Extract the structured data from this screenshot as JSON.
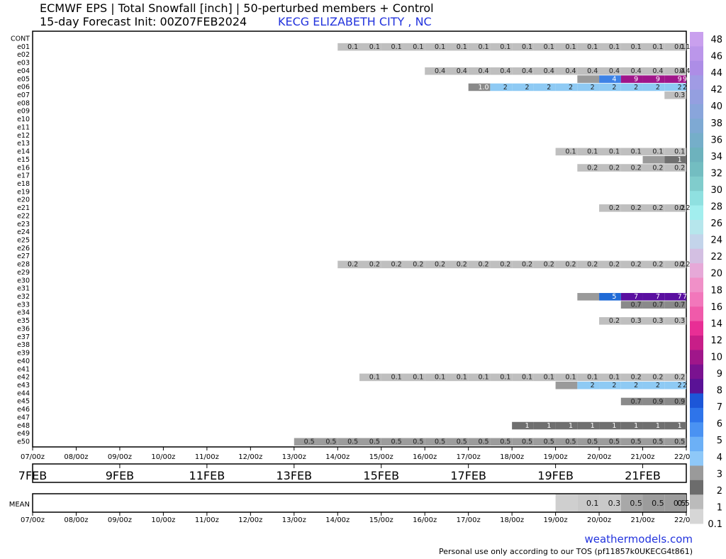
{
  "header": {
    "title": "ECMWF EPS | Total Snowfall [inch] | 50-perturbed members + Control",
    "subtitle": "15-day Forecast Init: 00Z07FEB2024",
    "location": "KECG ELIZABETH CITY , NC"
  },
  "footer": {
    "watermark": "weathermodels.com",
    "tos": "Personal use only according to our TOS (pf11857k0UKECG4t861)"
  },
  "chart_data": {
    "type": "heatmap",
    "members": [
      "CONT",
      "e01",
      "e02",
      "e03",
      "e04",
      "e05",
      "e06",
      "e07",
      "e08",
      "e09",
      "e10",
      "e11",
      "e12",
      "e13",
      "e14",
      "e15",
      "e16",
      "e17",
      "e18",
      "e19",
      "e20",
      "e21",
      "e22",
      "e23",
      "e24",
      "e25",
      "e26",
      "e27",
      "e28",
      "e29",
      "e30",
      "e31",
      "e32",
      "e33",
      "e34",
      "e35",
      "e36",
      "e37",
      "e38",
      "e39",
      "e40",
      "e41",
      "e42",
      "e43",
      "e44",
      "e45",
      "e46",
      "e47",
      "e48",
      "e49",
      "e50"
    ],
    "time_ticks": [
      "07/00z",
      "08/00z",
      "09/00z",
      "10/00z",
      "11/00z",
      "12/00z",
      "13/00z",
      "14/00z",
      "15/00z",
      "16/00z",
      "17/00z",
      "18/00z",
      "19/00z",
      "20/00z",
      "21/00z",
      "22/00z"
    ],
    "date_labels": [
      "7FEB",
      "9FEB",
      "11FEB",
      "13FEB",
      "15FEB",
      "17FEB",
      "19FEB",
      "21FEB"
    ],
    "date_label_days": [
      0,
      2,
      4,
      6,
      8,
      10,
      12,
      14
    ],
    "step_hours": 12,
    "member_cells": {
      "e01": {
        "values": [
          "0.1",
          "0.1",
          "0.1",
          "0.1",
          "0.1",
          "0.1",
          "0.1",
          "0.1",
          "0.1",
          "0.1",
          "0.1",
          "0.1",
          "0.1",
          "0.1",
          "0.1",
          "0.1",
          "0.1"
        ],
        "start_hours": 168
      },
      "e04": {
        "values": [
          "0.4",
          "0.4",
          "0.4",
          "0.4",
          "0.4",
          "0.4",
          "0.4",
          "0.4",
          "0.4",
          "0.4",
          "0.4",
          "0.4",
          "0.4"
        ],
        "start_hours": 216
      },
      "e05": {
        "values": [
          "",
          "4",
          "9",
          "9",
          "9",
          "9"
        ],
        "start_hours": 300
      },
      "e06": {
        "values": [
          "1.0",
          "2",
          "2",
          "2",
          "2",
          "2",
          "2",
          "2",
          "2",
          "2",
          "2",
          "2"
        ],
        "start_hours": 240
      },
      "e07": {
        "values": [
          "0.3"
        ],
        "start_hours": 348
      },
      "e14": {
        "values": [
          "0.1",
          "0.1",
          "0.1",
          "0.1",
          "0.1",
          "0.1"
        ],
        "start_hours": 288
      },
      "e15": {
        "values": [
          "",
          "1"
        ],
        "start_hours": 336
      },
      "e16": {
        "values": [
          "0.2",
          "0.2",
          "0.2",
          "0.2",
          "0.2"
        ],
        "start_hours": 300
      },
      "e21": {
        "values": [
          "0.2",
          "0.2",
          "0.2",
          "0.2",
          "0.2"
        ],
        "start_hours": 312
      },
      "e28": {
        "values": [
          "0.2",
          "0.2",
          "0.2",
          "0.2",
          "0.2",
          "0.2",
          "0.2",
          "0.2",
          "0.2",
          "0.2",
          "0.2",
          "0.2",
          "0.2",
          "0.2",
          "0.2",
          "0.2",
          "0.2"
        ],
        "start_hours": 168
      },
      "e32": {
        "values": [
          "",
          "5",
          "7",
          "7",
          "7",
          "7"
        ],
        "start_hours": 300
      },
      "e33": {
        "values": [
          "0.7",
          "0.7",
          "0.7"
        ],
        "start_hours": 324
      },
      "e35": {
        "values": [
          "0.2",
          "0.3",
          "0.3",
          "0.3"
        ],
        "start_hours": 312
      },
      "e42": {
        "values": [
          "0.1",
          "0.1",
          "0.1",
          "0.1",
          "0.1",
          "0.1",
          "0.1",
          "0.1",
          "0.1",
          "0.1",
          "0.1",
          "0.1",
          "0.2",
          "0.2",
          "0.2"
        ],
        "start_hours": 180
      },
      "e43": {
        "values": [
          "",
          "2",
          "2",
          "2",
          "2",
          "2",
          "2"
        ],
        "start_hours": 288
      },
      "e45": {
        "values": [
          "0.7",
          "0.9",
          "0.9"
        ],
        "start_hours": 324
      },
      "e48": {
        "values": [
          "1",
          "1",
          "1",
          "1",
          "1",
          "1",
          "1",
          "1"
        ],
        "start_hours": 264
      },
      "e50": {
        "values": [
          "0.5",
          "0.5",
          "0.5",
          "0.5",
          "0.5",
          "0.5",
          "0.5",
          "0.5",
          "0.5",
          "0.5",
          "0.5",
          "0.5",
          "0.5",
          "0.5",
          "0.5",
          "0.5",
          "0.5",
          "0.5"
        ],
        "start_hours": 144
      }
    },
    "mean": {
      "label": "MEAN",
      "values": [
        "",
        "0.1",
        "0.3",
        "0.5",
        "0.5",
        "0.5",
        "0.5"
      ],
      "start_hours": 288
    },
    "colorbar_labels": [
      "48",
      "46",
      "44",
      "42",
      "40",
      "38",
      "36",
      "34",
      "32",
      "30",
      "28",
      "26",
      "24",
      "22",
      "20",
      "18",
      "16",
      "14",
      "12",
      "10",
      "9",
      "8",
      "7",
      "6",
      "5",
      "4",
      "3",
      "2",
      "1",
      "0.1"
    ],
    "colorbar_colors": [
      "#c9a0ee",
      "#bb96ea",
      "#ad8de6",
      "#a09be4",
      "#949fe0",
      "#89a5db",
      "#7ea9d3",
      "#75aec9",
      "#6db2bd",
      "#73bdc1",
      "#80cccc",
      "#8fe0e0",
      "#a2eeee",
      "#b6e6ec",
      "#c3d4ea",
      "#d3bfe2",
      "#e6a9d8",
      "#f090c8",
      "#f277bb",
      "#f05aaa",
      "#e82e95",
      "#c81e88",
      "#a0168a",
      "#7a1290",
      "#5a1296",
      "#1c56d8",
      "#2e74ea",
      "#4a92f2",
      "#6cb0f6",
      "#8ec8f8",
      "#9a9a9a",
      "#6c6c6c",
      "#bbbbbb",
      "#d6d6d6"
    ],
    "cell_colors": {
      "0.1": "#bfbfbf",
      "0.2": "#bfbfbf",
      "0.3": "#bfbfbf",
      "0.4": "#bfbfbf",
      "0.5": "#9c9c9c",
      "0.7": "#8a8a8a",
      "0.9": "#8a8a8a",
      "1.0": "#8a8a8a",
      "1": "#6f6f6f",
      "2": "#8ecaf4",
      "4": "#3d82e6",
      "5": "#1f6ad6",
      "7": "#5a0fa0",
      "9": "#a0168a"
    }
  }
}
